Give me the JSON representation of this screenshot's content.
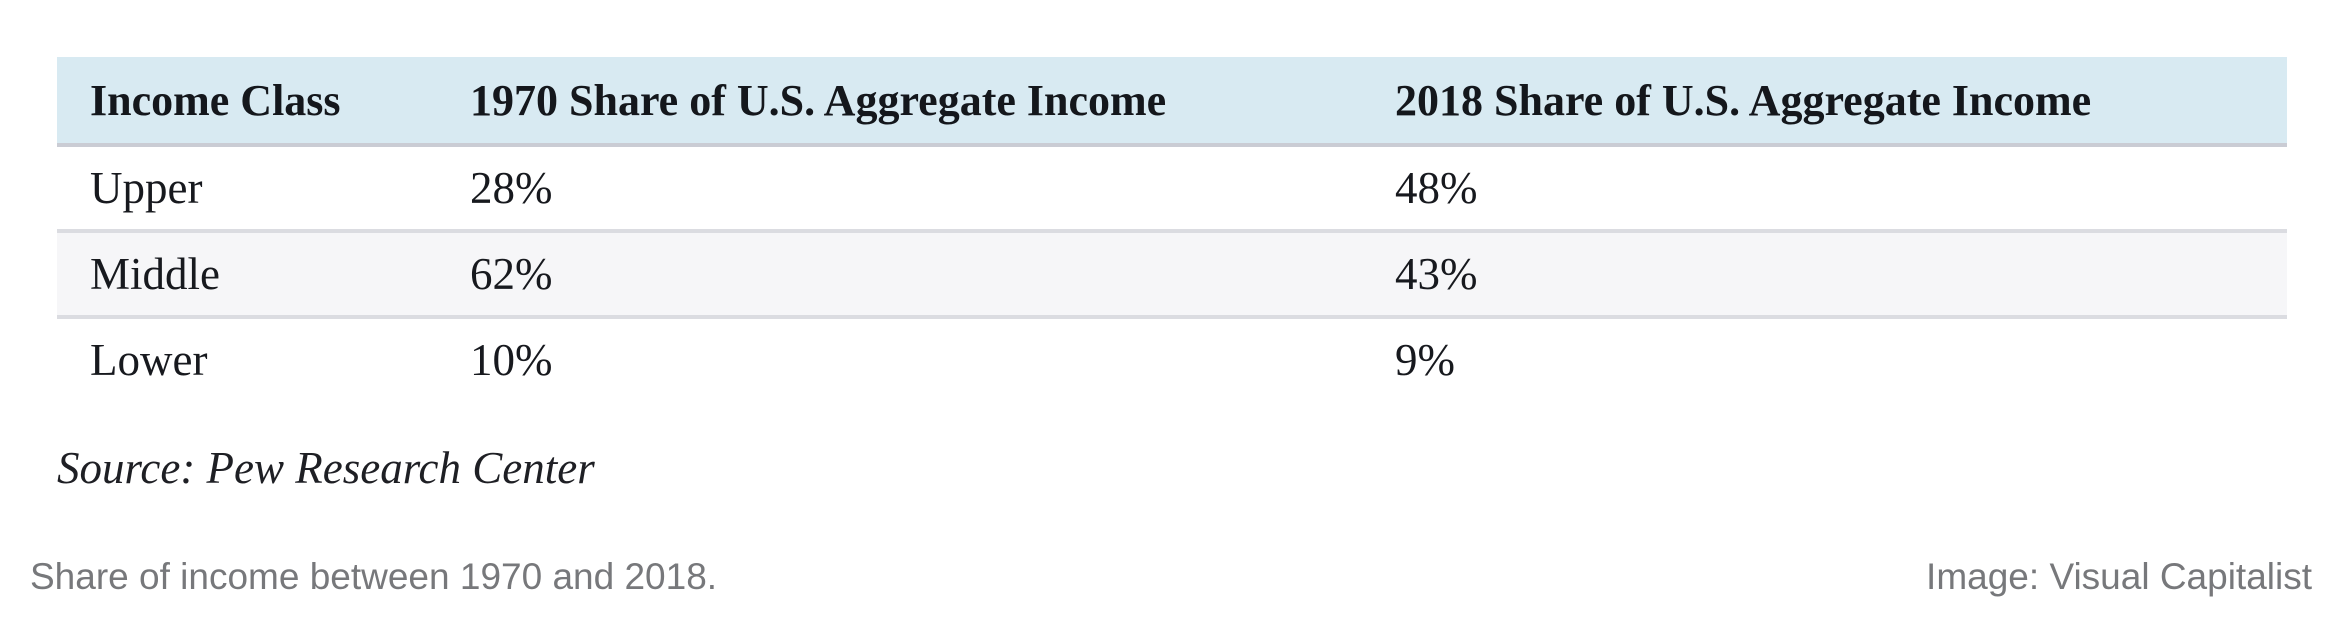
{
  "table": {
    "columns": [
      "Income Class",
      "1970 Share of U.S. Aggregate Income",
      "2018 Share of U.S. Aggregate Income"
    ],
    "rows": [
      {
        "label": "Upper",
        "share_1970": "28%",
        "share_2018": "48%"
      },
      {
        "label": "Middle",
        "share_1970": "62%",
        "share_2018": "43%"
      },
      {
        "label": "Lower",
        "share_1970": "10%",
        "share_2018": "9%"
      }
    ],
    "source": "Source: Pew Research Center"
  },
  "footer": {
    "caption": "Share of income between 1970 and 2018.",
    "credit": "Image: Visual Capitalist"
  },
  "colors": {
    "header_bg": "#d8eaf2",
    "alt_row_bg": "#f6f6f8",
    "divider": "#dbdce1",
    "header_border": "#caccd4",
    "table_text": "#17191e",
    "caption_text": "#77787b"
  },
  "chart_data": {
    "type": "table",
    "title": "Share of income between 1970 and 2018",
    "categories": [
      "Upper",
      "Middle",
      "Lower"
    ],
    "series": [
      {
        "name": "1970 Share of U.S. Aggregate Income",
        "values": [
          28,
          62,
          10
        ]
      },
      {
        "name": "2018 Share of U.S. Aggregate Income",
        "values": [
          48,
          43,
          9
        ]
      }
    ],
    "value_unit": "%",
    "source": "Pew Research Center",
    "credit": "Visual Capitalist"
  }
}
